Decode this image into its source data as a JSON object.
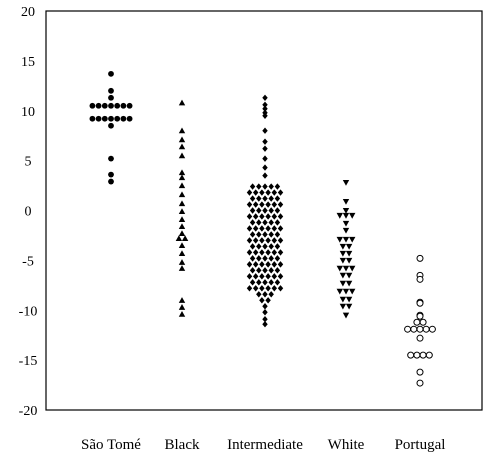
{
  "chart_data": {
    "type": "scatter",
    "subtype": "dot-strip",
    "title": "",
    "xlabel": "",
    "ylabel": "",
    "ylim": [
      -20,
      20
    ],
    "yticks": [
      20,
      15,
      10,
      5,
      0,
      -5,
      -10,
      -15,
      -20
    ],
    "grid": false,
    "legend": "none",
    "categories": [
      "São Tomé",
      "Black",
      "Intermediate",
      "White",
      "Portugal"
    ],
    "series": [
      {
        "category": "São Tomé",
        "marker": "circle-filled",
        "color": "#000000",
        "values": [
          13.7,
          12.0,
          11.3,
          10.5,
          10.5,
          10.5,
          10.5,
          10.5,
          10.5,
          10.5,
          9.2,
          9.2,
          9.2,
          9.2,
          9.2,
          9.2,
          9.2,
          8.5,
          5.2,
          3.6,
          2.9
        ]
      },
      {
        "category": "Black",
        "marker": "triangle-up-filled",
        "color": "#000000",
        "values": [
          10.8,
          8.0,
          7.1,
          6.4,
          5.5,
          3.8,
          3.3,
          2.5,
          1.6,
          0.7,
          -0.1,
          -0.9,
          -1.6,
          -2.3,
          -2.8,
          -2.8,
          -3.5,
          -4.3,
          -5.2,
          -5.8,
          -9.0,
          -9.7,
          -10.4
        ]
      },
      {
        "category": "Intermediate",
        "marker": "diamond-filled",
        "color": "#000000",
        "values": [
          11.3,
          10.6,
          10.2,
          9.8,
          9.5,
          8.0,
          6.9,
          6.2,
          5.2,
          4.3,
          3.5,
          2.4,
          2.4,
          2.4,
          2.4,
          2.4,
          1.8,
          1.8,
          1.8,
          1.8,
          1.8,
          1.8,
          1.2,
          1.2,
          1.2,
          1.2,
          1.2,
          0.6,
          0.6,
          0.6,
          0.6,
          0.6,
          0.6,
          0.0,
          0.0,
          0.0,
          0.0,
          0.0,
          -0.6,
          -0.6,
          -0.6,
          -0.6,
          -0.6,
          -0.6,
          -1.2,
          -1.2,
          -1.2,
          -1.2,
          -1.2,
          -1.8,
          -1.8,
          -1.8,
          -1.8,
          -1.8,
          -1.8,
          -2.4,
          -2.4,
          -2.4,
          -2.4,
          -2.4,
          -3.0,
          -3.0,
          -3.0,
          -3.0,
          -3.0,
          -3.0,
          -3.6,
          -3.6,
          -3.6,
          -3.6,
          -3.6,
          -4.2,
          -4.2,
          -4.2,
          -4.2,
          -4.2,
          -4.2,
          -4.8,
          -4.8,
          -4.8,
          -4.8,
          -4.8,
          -5.4,
          -5.4,
          -5.4,
          -5.4,
          -5.4,
          -5.4,
          -6.0,
          -6.0,
          -6.0,
          -6.0,
          -6.0,
          -6.6,
          -6.6,
          -6.6,
          -6.6,
          -6.6,
          -6.6,
          -7.2,
          -7.2,
          -7.2,
          -7.2,
          -7.2,
          -7.8,
          -7.8,
          -7.8,
          -7.8,
          -7.8,
          -7.8,
          -8.4,
          -8.4,
          -8.4,
          -9.0,
          -9.0,
          -9.6,
          -10.2,
          -10.9,
          -11.4
        ]
      },
      {
        "category": "White",
        "marker": "triangle-down-filled",
        "color": "#000000",
        "values": [
          2.8,
          0.9,
          0.0,
          -0.5,
          -0.5,
          -0.5,
          -1.3,
          -2.0,
          -2.9,
          -2.9,
          -2.9,
          -3.6,
          -3.6,
          -4.3,
          -4.3,
          -5.0,
          -5.0,
          -5.8,
          -5.8,
          -5.8,
          -6.5,
          -6.5,
          -7.3,
          -7.3,
          -8.1,
          -8.1,
          -8.1,
          -8.9,
          -8.9,
          -9.6,
          -9.6,
          -10.5
        ]
      },
      {
        "category": "Portugal",
        "marker": "circle-open",
        "color": "#000000",
        "values": [
          -4.8,
          -6.5,
          -6.9,
          -9.2,
          -9.3,
          -10.5,
          -10.6,
          -11.2,
          -11.2,
          -11.9,
          -11.9,
          -11.9,
          -11.9,
          -11.9,
          -12.8,
          -14.5,
          -14.5,
          -14.5,
          -14.5,
          -16.2,
          -17.3
        ]
      }
    ]
  }
}
